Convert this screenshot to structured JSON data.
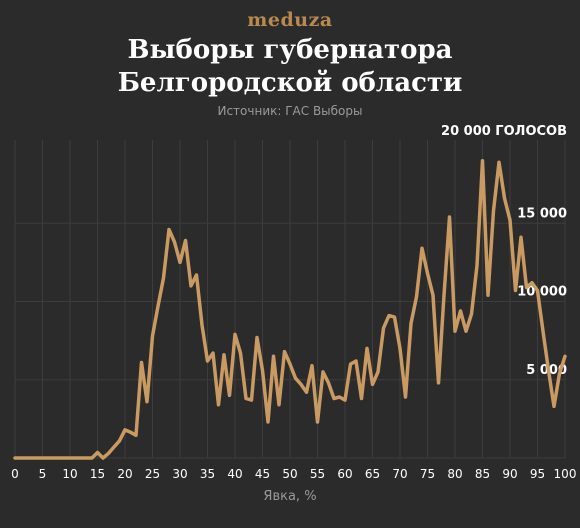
{
  "header": {
    "logo": "meduza",
    "title_line1": "Выборы губернатора",
    "title_line2": "Белгородской области",
    "source": "Источник: ГАС Выборы"
  },
  "colors": {
    "background": "#2b2b2b",
    "line": "#c99a62",
    "grid": "#3d3d3d",
    "text": "#ffffff",
    "muted": "#9a9a9a"
  },
  "chart_data": {
    "type": "line",
    "title": "Выборы губернатора Белгородской области",
    "xlabel": "Явка, %",
    "ylabel": "",
    "xlim": [
      0,
      100
    ],
    "ylim": [
      0,
      20000
    ],
    "grid": true,
    "x_ticks": [
      0,
      5,
      10,
      15,
      20,
      25,
      30,
      35,
      40,
      45,
      50,
      55,
      60,
      65,
      70,
      75,
      80,
      85,
      90,
      95,
      100
    ],
    "y_ticks": [
      {
        "value": 5000,
        "label": "5 000"
      },
      {
        "value": 10000,
        "label": "10 000"
      },
      {
        "value": 15000,
        "label": "15 000"
      },
      {
        "value": 20000,
        "label": "20 000 ГОЛОСОВ"
      }
    ],
    "series": [
      {
        "x": [
          0,
          1,
          2,
          3,
          4,
          5,
          6,
          7,
          8,
          9,
          10,
          11,
          12,
          13,
          14,
          15,
          16,
          17,
          18,
          19,
          20,
          21,
          22,
          23,
          24,
          25,
          26,
          27,
          28,
          29,
          30,
          31,
          32,
          33,
          34,
          35,
          36,
          37,
          38,
          39,
          40,
          41,
          42,
          43,
          44,
          45,
          46,
          47,
          48,
          49,
          50,
          51,
          52,
          53,
          54,
          55,
          56,
          57,
          58,
          59,
          60,
          61,
          62,
          63,
          64,
          65,
          66,
          67,
          68,
          69,
          70,
          71,
          72,
          73,
          74,
          75,
          76,
          77,
          78,
          79,
          80,
          81,
          82,
          83,
          84,
          85,
          86,
          87,
          88,
          89,
          90,
          91,
          92,
          93,
          94,
          95,
          96,
          97,
          98,
          99,
          100
        ],
        "values": [
          0,
          0,
          0,
          0,
          0,
          0,
          0,
          0,
          0,
          0,
          0,
          0,
          0,
          0,
          0,
          350,
          0,
          300,
          700,
          1100,
          1800,
          1650,
          1450,
          6100,
          3600,
          7800,
          9700,
          11500,
          14600,
          13800,
          12500,
          13900,
          11000,
          11700,
          8500,
          6200,
          6700,
          3400,
          6600,
          4000,
          7900,
          6700,
          3800,
          3700,
          7700,
          5600,
          2300,
          6500,
          3400,
          6800,
          6000,
          5100,
          4700,
          4200,
          5900,
          2300,
          5500,
          4800,
          3800,
          3900,
          3700,
          6000,
          6200,
          3800,
          7000,
          4700,
          5500,
          8300,
          9100,
          9000,
          7000,
          3900,
          8600,
          10300,
          13400,
          11800,
          10400,
          4800,
          10400,
          15400,
          8100,
          9400,
          8100,
          9200,
          12300,
          19000,
          10400,
          15800,
          18900,
          16600,
          15200,
          10700,
          14100,
          10900,
          11200,
          10700,
          8100,
          5600,
          3300,
          5400,
          6500
        ]
      }
    ]
  }
}
